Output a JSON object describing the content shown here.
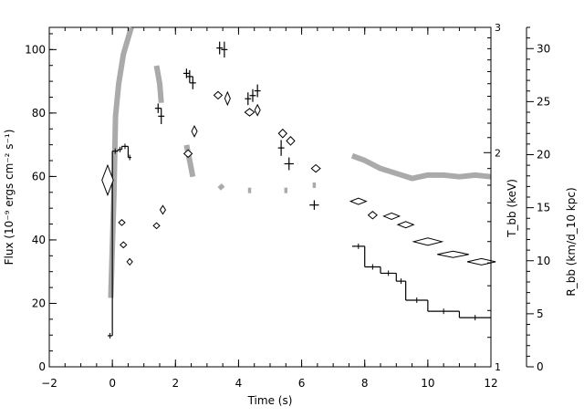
{
  "chart_data": {
    "type": "scatter",
    "xlabel": "Time (s)",
    "xlim": [
      -2,
      12
    ],
    "x_ticks": [
      "−2",
      "0",
      "2",
      "4",
      "6",
      "8",
      "10",
      "12"
    ],
    "left_axis": {
      "label": "Flux (10⁻⁹ ergs cm⁻² s⁻¹)",
      "ylim": [
        0,
        107
      ],
      "ticks": [
        "0",
        "20",
        "40",
        "60",
        "80",
        "100"
      ]
    },
    "temp_axis": {
      "label": "T_bb (keV)",
      "scale": "log",
      "ylim": [
        1,
        3
      ],
      "ticks": [
        "1",
        "2",
        "3"
      ]
    },
    "radius_axis": {
      "label": "R_bb (km/d_10 kpc)",
      "ylim": [
        0,
        32
      ],
      "ticks": [
        "0",
        "5",
        "10",
        "15",
        "20",
        "25",
        "30"
      ]
    },
    "series": [
      {
        "kind": "flux-histogram",
        "color": "#000000",
        "points": [
          {
            "x0": -0.15,
            "x1": 0.0,
            "y": 9.8
          },
          {
            "x0": 0.0,
            "x1": 0.18,
            "y": 68
          },
          {
            "x0": 0.18,
            "x1": 0.3,
            "y": 68.5
          },
          {
            "x0": 0.3,
            "x1": 0.5,
            "y": 69.5
          },
          {
            "x0": 0.5,
            "x1": 0.6,
            "y": 66
          },
          {
            "x0": 7.6,
            "x1": 8.0,
            "y": 38
          },
          {
            "x0": 8.0,
            "x1": 8.5,
            "y": 31.5
          },
          {
            "x0": 8.5,
            "x1": 9.0,
            "y": 29.5
          },
          {
            "x0": 9.0,
            "x1": 9.3,
            "y": 27
          },
          {
            "x0": 9.3,
            "x1": 10.0,
            "y": 21
          },
          {
            "x0": 10.0,
            "x1": 11.0,
            "y": 17.5
          },
          {
            "x0": 11.0,
            "x1": 12.0,
            "y": 15.5
          }
        ]
      },
      {
        "kind": "flux-crosses",
        "color": "#000000",
        "points": [
          {
            "x": 1.45,
            "y": 81.5,
            "xe": 0.1,
            "ye": 1.5
          },
          {
            "x": 1.55,
            "y": 79,
            "xe": 0.1,
            "ye": 2.5
          },
          {
            "x": 2.35,
            "y": 92.5,
            "xe": 0.1,
            "ye": 1.5
          },
          {
            "x": 2.45,
            "y": 91.5,
            "xe": 0.1,
            "ye": 2
          },
          {
            "x": 2.55,
            "y": 89.5,
            "xe": 0.1,
            "ye": 2
          },
          {
            "x": 3.4,
            "y": 100.5,
            "xe": 0.1,
            "ye": 2
          },
          {
            "x": 3.55,
            "y": 100,
            "xe": 0.1,
            "ye": 2.5
          },
          {
            "x": 4.3,
            "y": 84.5,
            "xe": 0.1,
            "ye": 2
          },
          {
            "x": 4.45,
            "y": 85.5,
            "xe": 0.1,
            "ye": 2
          },
          {
            "x": 4.6,
            "y": 87,
            "xe": 0.1,
            "ye": 2
          },
          {
            "x": 5.35,
            "y": 69,
            "xe": 0.1,
            "ye": 2.5
          },
          {
            "x": 5.6,
            "y": 64,
            "xe": 0.15,
            "ye": 2
          },
          {
            "x": 6.4,
            "y": 51,
            "xe": 0.15,
            "ye": 1.5
          }
        ]
      },
      {
        "kind": "radius-diamonds",
        "color": "#000000",
        "points": [
          {
            "x": -0.15,
            "y": 17.6,
            "xe": 0.18,
            "ye": 1.4
          },
          {
            "x": 0.3,
            "y": 13.6,
            "xe": 0.1,
            "ye": 0.25
          },
          {
            "x": 0.35,
            "y": 11.5,
            "xe": 0.1,
            "ye": 0.25
          },
          {
            "x": 0.55,
            "y": 9.9,
            "xe": 0.08,
            "ye": 0.3
          },
          {
            "x": 1.4,
            "y": 13.3,
            "xe": 0.1,
            "ye": 0.25
          },
          {
            "x": 1.6,
            "y": 14.8,
            "xe": 0.06,
            "ye": 0.4
          },
          {
            "x": 2.4,
            "y": 20.1,
            "xe": 0.13,
            "ye": 0.35
          },
          {
            "x": 2.6,
            "y": 22.2,
            "xe": 0.06,
            "ye": 0.5
          },
          {
            "x": 3.35,
            "y": 25.6,
            "xe": 0.13,
            "ye": 0.35
          },
          {
            "x": 3.65,
            "y": 25.3,
            "xe": 0.06,
            "ye": 0.6
          },
          {
            "x": 4.35,
            "y": 24,
            "xe": 0.15,
            "ye": 0.35
          },
          {
            "x": 4.6,
            "y": 24.2,
            "xe": 0.06,
            "ye": 0.5
          },
          {
            "x": 5.4,
            "y": 22,
            "xe": 0.13,
            "ye": 0.4
          },
          {
            "x": 5.65,
            "y": 21.3,
            "xe": 0.13,
            "ye": 0.4
          },
          {
            "x": 6.45,
            "y": 18.7,
            "xe": 0.14,
            "ye": 0.35
          },
          {
            "x": 7.8,
            "y": 15.6,
            "xe": 0.25,
            "ye": 0.3
          },
          {
            "x": 8.25,
            "y": 14.3,
            "xe": 0.14,
            "ye": 0.35
          },
          {
            "x": 8.85,
            "y": 14.2,
            "xe": 0.25,
            "ye": 0.3
          },
          {
            "x": 9.3,
            "y": 13.4,
            "xe": 0.25,
            "ye": 0.3
          },
          {
            "x": 10.0,
            "y": 11.8,
            "xe": 0.45,
            "ye": 0.35
          },
          {
            "x": 10.8,
            "y": 10.6,
            "xe": 0.5,
            "ye": 0.3
          },
          {
            "x": 11.7,
            "y": 9.9,
            "xe": 0.45,
            "ye": 0.3
          }
        ]
      },
      {
        "kind": "temperature-bands",
        "color": "#aaaaaa",
        "segments": [
          [
            [
              -0.05,
              1.25
            ],
            [
              0.05,
              1.75
            ],
            [
              0.1,
              2.25
            ],
            [
              0.2,
              2.5
            ],
            [
              0.35,
              2.75
            ],
            [
              0.6,
              3.0
            ]
          ],
          [
            [
              1.4,
              2.65
            ],
            [
              1.5,
              2.5
            ],
            [
              1.55,
              2.35
            ]
          ],
          [
            [
              2.35,
              2.05
            ],
            [
              2.45,
              1.95
            ],
            [
              2.55,
              1.85
            ]
          ],
          [
            [
              3.4,
              1.8
            ],
            [
              3.5,
              1.78
            ]
          ],
          [
            [
              4.3,
              1.77
            ],
            [
              4.4,
              1.77
            ]
          ],
          [
            [
              5.45,
              1.77
            ],
            [
              5.55,
              1.77
            ]
          ],
          [
            [
              6.35,
              1.8
            ],
            [
              6.45,
              1.8
            ]
          ],
          [
            [
              7.6,
              1.98
            ],
            [
              8.0,
              1.95
            ],
            [
              8.5,
              1.9
            ],
            [
              9.0,
              1.87
            ],
            [
              9.5,
              1.84
            ],
            [
              10.0,
              1.86
            ],
            [
              10.5,
              1.86
            ],
            [
              11.0,
              1.85
            ],
            [
              11.5,
              1.86
            ],
            [
              12.0,
              1.85
            ]
          ]
        ]
      }
    ]
  }
}
